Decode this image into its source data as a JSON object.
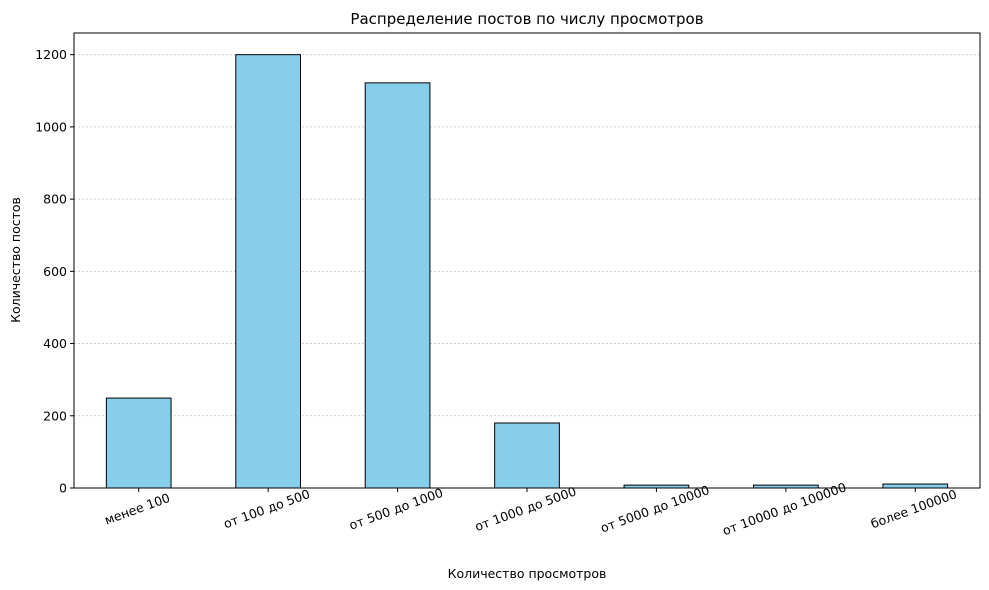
{
  "chart_data": {
    "type": "bar",
    "title": "Распределение постов по числу просмотров",
    "xlabel": "Количество просмотров",
    "ylabel": "Количество постов",
    "categories": [
      "менее 100",
      "от 100 до 500",
      "от 500 до 1000",
      "от 1000 до 5000",
      "от 5000 до 10000",
      "от 10000 до 100000",
      "более 100000"
    ],
    "values": [
      249,
      1200,
      1122,
      180,
      8,
      8,
      11
    ],
    "ylim": [
      0,
      1260
    ],
    "yticks": [
      0,
      200,
      400,
      600,
      800,
      1000,
      1200
    ],
    "ytick_labels": [
      "0",
      "200",
      "400",
      "600",
      "800",
      "1000",
      "1200"
    ],
    "grid": "horizontal dotted",
    "legend": "none",
    "bar_color": "#87CEEB",
    "edge_color": "#000000"
  }
}
